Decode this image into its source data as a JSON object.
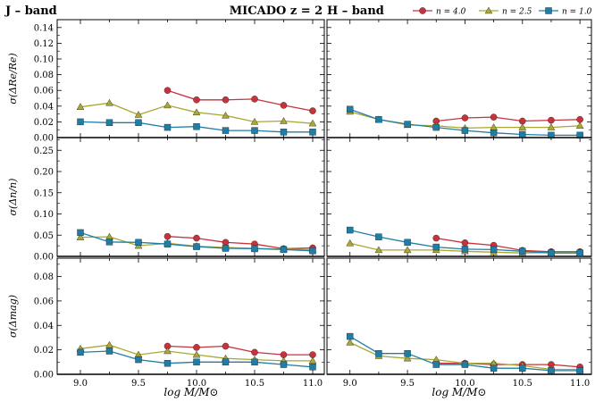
{
  "header": {
    "left_label": "J – band",
    "center_label": "MICADO z = 2",
    "right_label": "H – band"
  },
  "legend": {
    "placement": "top-right",
    "items": [
      {
        "label": "n = 4.0",
        "color": "#c8323c",
        "marker": "circle"
      },
      {
        "label": "n = 2.5",
        "color": "#a8a832",
        "marker": "triangle"
      },
      {
        "label": "n = 1.0",
        "color": "#1f7ea8",
        "marker": "square"
      }
    ]
  },
  "xlabel": "log M/M⊙",
  "chart_data": [
    {
      "type": "line",
      "band": "J",
      "row": 0,
      "ylabel": "σ(ΔRe/Re)",
      "ylim": [
        0,
        0.15
      ],
      "yticks": [
        "0.00",
        "0.02",
        "0.04",
        "0.06",
        "0.08",
        "0.10",
        "0.12",
        "0.14"
      ],
      "yticks_v": [
        0,
        0.02,
        0.04,
        0.06,
        0.08,
        0.1,
        0.12,
        0.14
      ],
      "xlim": [
        8.8,
        11.1
      ],
      "series": [
        {
          "name": "n = 4.0",
          "x": [
            9.75,
            10.0,
            10.25,
            10.5,
            10.75,
            11.0
          ],
          "y": [
            0.06,
            0.048,
            0.048,
            0.049,
            0.041,
            0.034
          ]
        },
        {
          "name": "n = 2.5",
          "x": [
            9.0,
            9.25,
            9.5,
            9.75,
            10.0,
            10.25,
            10.5,
            10.75,
            11.0
          ],
          "y": [
            0.039,
            0.044,
            0.029,
            0.041,
            0.032,
            0.028,
            0.02,
            0.021,
            0.018
          ]
        },
        {
          "name": "n = 1.0",
          "x": [
            9.0,
            9.25,
            9.5,
            9.75,
            10.0,
            10.25,
            10.5,
            10.75,
            11.0
          ],
          "y": [
            0.02,
            0.019,
            0.019,
            0.013,
            0.014,
            0.009,
            0.009,
            0.007,
            0.007
          ]
        }
      ]
    },
    {
      "type": "line",
      "band": "H",
      "row": 0,
      "ylim": [
        0,
        0.15
      ],
      "yticks_v": [
        0,
        0.02,
        0.04,
        0.06,
        0.08,
        0.1,
        0.12,
        0.14
      ],
      "xlim": [
        8.8,
        11.1
      ],
      "series": [
        {
          "name": "n = 4.0",
          "x": [
            9.75,
            10.0,
            10.25,
            10.5,
            10.75,
            11.0
          ],
          "y": [
            0.021,
            0.025,
            0.026,
            0.021,
            0.022,
            0.023
          ]
        },
        {
          "name": "n = 2.5",
          "x": [
            9.0,
            9.25,
            9.5,
            9.75,
            10.0,
            10.25,
            10.5,
            10.75,
            11.0
          ],
          "y": [
            0.033,
            0.023,
            0.016,
            0.015,
            0.012,
            0.013,
            0.013,
            0.013,
            0.015
          ]
        },
        {
          "name": "n = 1.0",
          "x": [
            9.0,
            9.25,
            9.5,
            9.75,
            10.0,
            10.25,
            10.5,
            10.75,
            11.0
          ],
          "y": [
            0.036,
            0.023,
            0.017,
            0.013,
            0.009,
            0.006,
            0.004,
            0.003,
            0.003
          ]
        }
      ]
    },
    {
      "type": "line",
      "band": "J",
      "row": 1,
      "ylabel": "σ(Δn/n)",
      "ylim": [
        0,
        0.28
      ],
      "yticks": [
        "0.00",
        "0.05",
        "0.10",
        "0.15",
        "0.20",
        "0.25"
      ],
      "yticks_v": [
        0,
        0.05,
        0.1,
        0.15,
        0.2,
        0.25
      ],
      "xlim": [
        8.8,
        11.1
      ],
      "series": [
        {
          "name": "n = 4.0",
          "x": [
            9.75,
            10.0,
            10.25,
            10.5,
            10.75,
            11.0
          ],
          "y": [
            0.047,
            0.043,
            0.033,
            0.029,
            0.018,
            0.02
          ]
        },
        {
          "name": "n = 2.5",
          "x": [
            9.0,
            9.25,
            9.5,
            9.75,
            10.0,
            10.25,
            10.5,
            10.75,
            11.0
          ],
          "y": [
            0.045,
            0.046,
            0.025,
            0.031,
            0.024,
            0.021,
            0.019,
            0.017,
            0.016
          ]
        },
        {
          "name": "n = 1.0",
          "x": [
            9.0,
            9.25,
            9.5,
            9.75,
            10.0,
            10.25,
            10.5,
            10.75,
            11.0
          ],
          "y": [
            0.056,
            0.034,
            0.033,
            0.029,
            0.023,
            0.019,
            0.018,
            0.016,
            0.013
          ]
        }
      ]
    },
    {
      "type": "line",
      "band": "H",
      "row": 1,
      "ylim": [
        0,
        0.28
      ],
      "yticks_v": [
        0,
        0.05,
        0.1,
        0.15,
        0.2,
        0.25
      ],
      "xlim": [
        8.8,
        11.1
      ],
      "series": [
        {
          "name": "n = 4.0",
          "x": [
            9.75,
            10.0,
            10.25,
            10.5,
            10.75,
            11.0
          ],
          "y": [
            0.043,
            0.032,
            0.026,
            0.014,
            0.011,
            0.011
          ]
        },
        {
          "name": "n = 2.5",
          "x": [
            9.0,
            9.25,
            9.5,
            9.75,
            10.0,
            10.25,
            10.5,
            10.75,
            11.0
          ],
          "y": [
            0.031,
            0.015,
            0.015,
            0.015,
            0.012,
            0.01,
            0.008,
            0.009,
            0.009
          ]
        },
        {
          "name": "n = 1.0",
          "x": [
            9.0,
            9.25,
            9.5,
            9.75,
            10.0,
            10.25,
            10.5,
            10.75,
            11.0
          ],
          "y": [
            0.062,
            0.046,
            0.033,
            0.022,
            0.017,
            0.016,
            0.012,
            0.008,
            0.008
          ]
        }
      ]
    },
    {
      "type": "line",
      "band": "J",
      "row": 2,
      "ylabel": "σ(Δmag)",
      "ylim": [
        0,
        0.095
      ],
      "yticks": [
        "0.00",
        "0.02",
        "0.04",
        "0.06",
        "0.08"
      ],
      "yticks_v": [
        0,
        0.02,
        0.04,
        0.06,
        0.08
      ],
      "xlim": [
        8.8,
        11.1
      ],
      "xticks": [
        "9.0",
        "9.5",
        "10.0",
        "10.5",
        "11.0"
      ],
      "xticks_v": [
        9.0,
        9.5,
        10.0,
        10.5,
        11.0
      ],
      "series": [
        {
          "name": "n = 4.0",
          "x": [
            9.75,
            10.0,
            10.25,
            10.5,
            10.75,
            11.0
          ],
          "y": [
            0.023,
            0.022,
            0.023,
            0.018,
            0.016,
            0.016
          ]
        },
        {
          "name": "n = 2.5",
          "x": [
            9.0,
            9.25,
            9.5,
            9.75,
            10.0,
            10.25,
            10.5,
            10.75,
            11.0
          ],
          "y": [
            0.021,
            0.024,
            0.016,
            0.019,
            0.016,
            0.013,
            0.012,
            0.011,
            0.011
          ]
        },
        {
          "name": "n = 1.0",
          "x": [
            9.0,
            9.25,
            9.5,
            9.75,
            10.0,
            10.25,
            10.5,
            10.75,
            11.0
          ],
          "y": [
            0.018,
            0.019,
            0.012,
            0.009,
            0.01,
            0.01,
            0.01,
            0.008,
            0.006
          ]
        }
      ]
    },
    {
      "type": "line",
      "band": "H",
      "row": 2,
      "ylim": [
        0,
        0.095
      ],
      "yticks_v": [
        0,
        0.02,
        0.04,
        0.06,
        0.08
      ],
      "xlim": [
        8.8,
        11.1
      ],
      "xticks": [
        "9.0",
        "9.5",
        "10.0",
        "10.5",
        "11.0"
      ],
      "xticks_v": [
        9.0,
        9.5,
        10.0,
        10.5,
        11.0
      ],
      "series": [
        {
          "name": "n = 4.0",
          "x": [
            9.75,
            10.0,
            10.25,
            10.5,
            10.75,
            11.0
          ],
          "y": [
            0.009,
            0.009,
            0.008,
            0.008,
            0.008,
            0.006
          ]
        },
        {
          "name": "n = 2.5",
          "x": [
            9.0,
            9.25,
            9.5,
            9.75,
            10.0,
            10.25,
            10.5,
            10.75,
            11.0
          ],
          "y": [
            0.026,
            0.015,
            0.013,
            0.012,
            0.009,
            0.009,
            0.007,
            0.004,
            0.004
          ]
        },
        {
          "name": "n = 1.0",
          "x": [
            9.0,
            9.25,
            9.5,
            9.75,
            10.0,
            10.25,
            10.5,
            10.75,
            11.0
          ],
          "y": [
            0.031,
            0.017,
            0.017,
            0.008,
            0.008,
            0.005,
            0.005,
            0.003,
            0.003
          ]
        }
      ]
    }
  ]
}
